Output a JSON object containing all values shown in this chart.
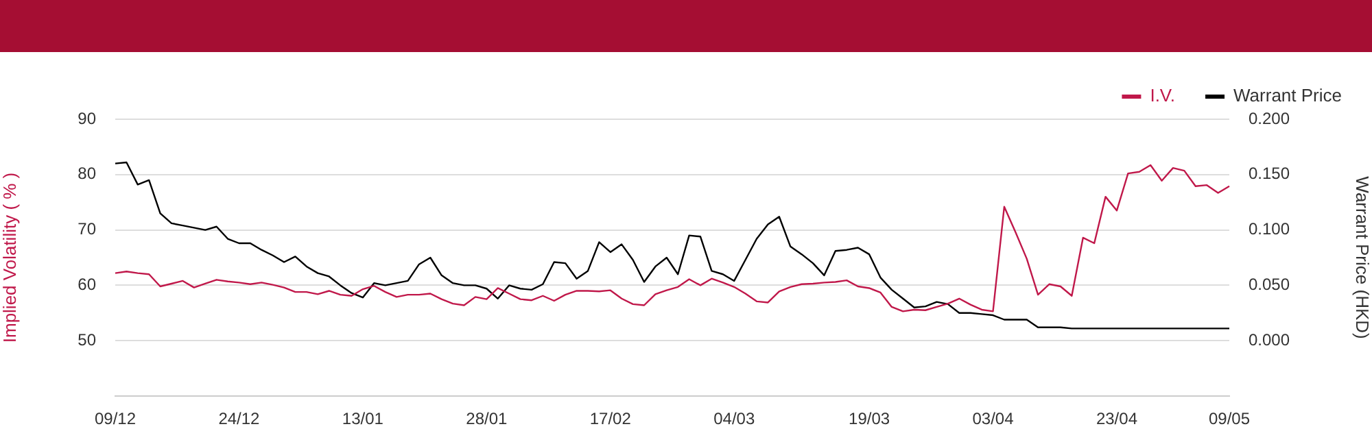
{
  "chart_data": {
    "type": "line",
    "categories": [
      "09/12",
      null,
      null,
      null,
      null,
      null,
      null,
      null,
      null,
      null,
      null,
      "24/12",
      null,
      null,
      null,
      null,
      null,
      null,
      null,
      null,
      null,
      null,
      "13/01",
      null,
      null,
      null,
      null,
      null,
      null,
      null,
      null,
      null,
      null,
      "28/01",
      null,
      null,
      null,
      null,
      null,
      null,
      null,
      null,
      null,
      null,
      "17/02",
      null,
      null,
      null,
      null,
      null,
      null,
      null,
      null,
      null,
      null,
      "04/03",
      null,
      null,
      null,
      null,
      null,
      null,
      null,
      null,
      null,
      null,
      null,
      "19/03",
      null,
      null,
      null,
      null,
      null,
      null,
      null,
      null,
      null,
      null,
      "03/04",
      null,
      null,
      null,
      null,
      null,
      null,
      null,
      null,
      null,
      null,
      "23/04",
      null,
      null,
      null,
      null,
      null,
      null,
      null,
      null,
      null,
      "09/05"
    ],
    "series": [
      {
        "name": "I.V.",
        "color": "#c0184a",
        "values": [
          62.2,
          62.5,
          62.2,
          62.0,
          59.8,
          60.3,
          60.8,
          59.6,
          60.3,
          61.0,
          60.7,
          60.5,
          60.2,
          60.5,
          60.1,
          59.6,
          58.8,
          58.8,
          58.4,
          59.0,
          58.3,
          58.1,
          59.3,
          59.9,
          58.8,
          57.9,
          58.3,
          58.3,
          58.5,
          57.5,
          56.7,
          56.4,
          57.9,
          57.5,
          59.5,
          58.5,
          57.5,
          57.3,
          58.1,
          57.2,
          58.3,
          59.0,
          59.0,
          58.9,
          59.1,
          57.6,
          56.6,
          56.4,
          58.4,
          59.1,
          59.7,
          61.1,
          60.0,
          61.2,
          60.5,
          59.7,
          58.5,
          57.1,
          56.9,
          58.9,
          59.7,
          60.2,
          60.3,
          60.5,
          60.6,
          60.9,
          59.8,
          59.5,
          58.7,
          56.1,
          55.3,
          55.6,
          55.5,
          56.1,
          56.7,
          57.6,
          56.5,
          55.6,
          55.3,
          74.2,
          69.6,
          64.8,
          58.3,
          60.2,
          59.8,
          58.1,
          68.6,
          67.6,
          76.0,
          73.5,
          80.2,
          80.5,
          81.7,
          78.9,
          81.2,
          80.7,
          77.9,
          78.1,
          76.7,
          77.9
        ]
      },
      {
        "name": "Warrant Price",
        "color": "#000000",
        "axis": "y2",
        "values": [
          0.16,
          0.161,
          0.141,
          0.145,
          0.115,
          0.106,
          0.104,
          0.102,
          0.1,
          0.103,
          0.092,
          0.088,
          0.088,
          0.082,
          0.077,
          0.071,
          0.076,
          0.067,
          0.061,
          0.058,
          0.05,
          0.043,
          0.039,
          0.052,
          0.05,
          0.052,
          0.054,
          0.069,
          0.075,
          0.059,
          0.052,
          0.05,
          0.05,
          0.047,
          0.038,
          0.05,
          0.047,
          0.046,
          0.051,
          0.071,
          0.07,
          0.056,
          0.063,
          0.089,
          0.08,
          0.087,
          0.073,
          0.053,
          0.067,
          0.075,
          0.06,
          0.095,
          0.094,
          0.063,
          0.06,
          0.054,
          0.073,
          0.092,
          0.105,
          0.112,
          0.085,
          0.078,
          0.07,
          0.059,
          0.081,
          0.082,
          0.084,
          0.078,
          0.057,
          0.046,
          0.038,
          0.03,
          0.031,
          0.035,
          0.033,
          0.025,
          0.025,
          0.024,
          0.023,
          0.019,
          0.019,
          0.019,
          0.012,
          0.012,
          0.012,
          0.011,
          0.011,
          0.011,
          0.011,
          0.011,
          0.011,
          0.011,
          0.011,
          0.011,
          0.011,
          0.011,
          0.011,
          0.011,
          0.011,
          0.011
        ]
      }
    ],
    "ylabel": "Implied Volatility ( % )",
    "y2label": "Warrant Price (HKD)",
    "ylim": [
      40,
      90
    ],
    "yticks": [
      50,
      60,
      70,
      80,
      90
    ],
    "y2lim": [
      -0.05,
      0.2
    ],
    "y2ticks": [
      {
        "value": 0,
        "label": "0.000"
      },
      {
        "value": 0.05,
        "label": "0.050"
      },
      {
        "value": 0.1,
        "label": "0.100"
      },
      {
        "value": 0.15,
        "label": "0.150"
      },
      {
        "value": 0.2,
        "label": "0.200"
      }
    ],
    "grid": "y",
    "legend": "top right",
    "marker": "none"
  }
}
